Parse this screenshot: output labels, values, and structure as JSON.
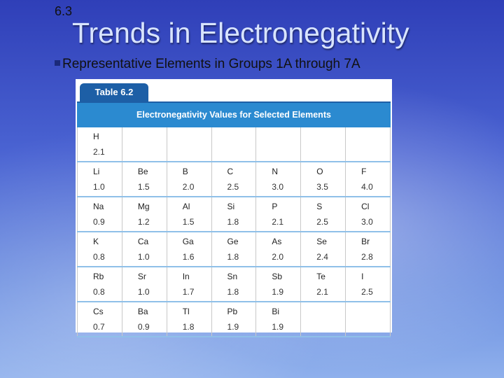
{
  "header": {
    "section": "6.3",
    "title": "Trends in Electronegativity",
    "bullet": "Representative Elements in Groups 1A through 7A"
  },
  "table": {
    "label": "Table 6.2",
    "caption": "Electronegativity Values for Selected Elements",
    "rows": [
      [
        {
          "symbol": "H",
          "value": "2.1"
        },
        null,
        null,
        null,
        null,
        null,
        null
      ],
      [
        {
          "symbol": "Li",
          "value": "1.0"
        },
        {
          "symbol": "Be",
          "value": "1.5"
        },
        {
          "symbol": "B",
          "value": "2.0"
        },
        {
          "symbol": "C",
          "value": "2.5"
        },
        {
          "symbol": "N",
          "value": "3.0"
        },
        {
          "symbol": "O",
          "value": "3.5"
        },
        {
          "symbol": "F",
          "value": "4.0"
        }
      ],
      [
        {
          "symbol": "Na",
          "value": "0.9"
        },
        {
          "symbol": "Mg",
          "value": "1.2"
        },
        {
          "symbol": "Al",
          "value": "1.5"
        },
        {
          "symbol": "Si",
          "value": "1.8"
        },
        {
          "symbol": "P",
          "value": "2.1"
        },
        {
          "symbol": "S",
          "value": "2.5"
        },
        {
          "symbol": "Cl",
          "value": "3.0"
        }
      ],
      [
        {
          "symbol": "K",
          "value": "0.8"
        },
        {
          "symbol": "Ca",
          "value": "1.0"
        },
        {
          "symbol": "Ga",
          "value": "1.6"
        },
        {
          "symbol": "Ge",
          "value": "1.8"
        },
        {
          "symbol": "As",
          "value": "2.0"
        },
        {
          "symbol": "Se",
          "value": "2.4"
        },
        {
          "symbol": "Br",
          "value": "2.8"
        }
      ],
      [
        {
          "symbol": "Rb",
          "value": "0.8"
        },
        {
          "symbol": "Sr",
          "value": "1.0"
        },
        {
          "symbol": "In",
          "value": "1.7"
        },
        {
          "symbol": "Sn",
          "value": "1.8"
        },
        {
          "symbol": "Sb",
          "value": "1.9"
        },
        {
          "symbol": "Te",
          "value": "2.1"
        },
        {
          "symbol": "I",
          "value": "2.5"
        }
      ],
      [
        {
          "symbol": "Cs",
          "value": "0.7"
        },
        {
          "symbol": "Ba",
          "value": "0.9"
        },
        {
          "symbol": "Tl",
          "value": "1.8"
        },
        {
          "symbol": "Pb",
          "value": "1.9"
        },
        {
          "symbol": "Bi",
          "value": "1.9"
        },
        null,
        null
      ]
    ]
  }
}
